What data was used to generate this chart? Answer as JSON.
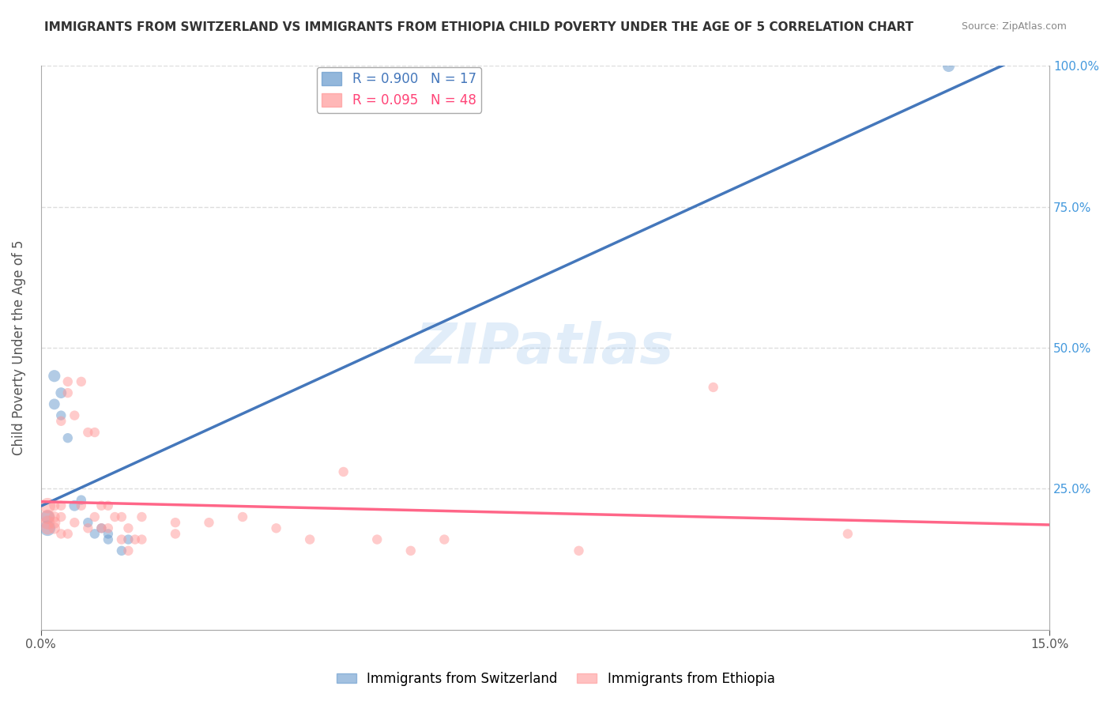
{
  "title": "IMMIGRANTS FROM SWITZERLAND VS IMMIGRANTS FROM ETHIOPIA CHILD POVERTY UNDER THE AGE OF 5 CORRELATION CHART",
  "source": "Source: ZipAtlas.com",
  "ylabel": "Child Poverty Under the Age of 5",
  "xlabel_switzerland": "Immigrants from Switzerland",
  "xlabel_ethiopia": "Immigrants from Ethiopia",
  "watermark": "ZIPatlas",
  "legend_switzerland": {
    "R": 0.9,
    "N": 17
  },
  "legend_ethiopia": {
    "R": 0.095,
    "N": 48
  },
  "xlim": [
    0,
    0.15
  ],
  "ylim": [
    0,
    1.0
  ],
  "color_switzerland": "#6699CC",
  "color_ethiopia": "#FF9999",
  "color_line_switzerland": "#4477BB",
  "color_line_ethiopia": "#FF6688",
  "switzerland_points": [
    [
      0.001,
      0.18
    ],
    [
      0.001,
      0.2
    ],
    [
      0.002,
      0.45
    ],
    [
      0.002,
      0.4
    ],
    [
      0.003,
      0.42
    ],
    [
      0.003,
      0.38
    ],
    [
      0.004,
      0.34
    ],
    [
      0.005,
      0.22
    ],
    [
      0.006,
      0.23
    ],
    [
      0.007,
      0.19
    ],
    [
      0.008,
      0.17
    ],
    [
      0.009,
      0.18
    ],
    [
      0.01,
      0.17
    ],
    [
      0.01,
      0.16
    ],
    [
      0.012,
      0.14
    ],
    [
      0.013,
      0.16
    ],
    [
      0.135,
      1.0
    ]
  ],
  "switzerland_sizes": [
    200,
    150,
    120,
    100,
    100,
    80,
    80,
    100,
    80,
    80,
    80,
    80,
    80,
    80,
    80,
    80,
    120
  ],
  "ethiopia_points": [
    [
      0.001,
      0.22
    ],
    [
      0.001,
      0.2
    ],
    [
      0.001,
      0.19
    ],
    [
      0.001,
      0.18
    ],
    [
      0.002,
      0.19
    ],
    [
      0.002,
      0.18
    ],
    [
      0.002,
      0.2
    ],
    [
      0.002,
      0.22
    ],
    [
      0.003,
      0.37
    ],
    [
      0.003,
      0.22
    ],
    [
      0.003,
      0.2
    ],
    [
      0.003,
      0.17
    ],
    [
      0.004,
      0.44
    ],
    [
      0.004,
      0.42
    ],
    [
      0.004,
      0.17
    ],
    [
      0.005,
      0.38
    ],
    [
      0.005,
      0.19
    ],
    [
      0.006,
      0.44
    ],
    [
      0.006,
      0.22
    ],
    [
      0.007,
      0.35
    ],
    [
      0.007,
      0.18
    ],
    [
      0.008,
      0.35
    ],
    [
      0.008,
      0.2
    ],
    [
      0.009,
      0.22
    ],
    [
      0.009,
      0.18
    ],
    [
      0.01,
      0.22
    ],
    [
      0.01,
      0.18
    ],
    [
      0.011,
      0.2
    ],
    [
      0.012,
      0.2
    ],
    [
      0.012,
      0.16
    ],
    [
      0.013,
      0.14
    ],
    [
      0.013,
      0.18
    ],
    [
      0.014,
      0.16
    ],
    [
      0.015,
      0.2
    ],
    [
      0.015,
      0.16
    ],
    [
      0.02,
      0.19
    ],
    [
      0.02,
      0.17
    ],
    [
      0.025,
      0.19
    ],
    [
      0.03,
      0.2
    ],
    [
      0.035,
      0.18
    ],
    [
      0.04,
      0.16
    ],
    [
      0.045,
      0.28
    ],
    [
      0.05,
      0.16
    ],
    [
      0.055,
      0.14
    ],
    [
      0.06,
      0.16
    ],
    [
      0.08,
      0.14
    ],
    [
      0.1,
      0.43
    ],
    [
      0.12,
      0.17
    ]
  ],
  "ethiopia_sizes": [
    200,
    180,
    160,
    140,
    120,
    110,
    100,
    90,
    80,
    80,
    80,
    80,
    80,
    80,
    80,
    80,
    80,
    80,
    80,
    80,
    80,
    80,
    80,
    80,
    80,
    80,
    80,
    80,
    80,
    80,
    80,
    80,
    80,
    80,
    80,
    80,
    80,
    80,
    80,
    80,
    80,
    80,
    80,
    80,
    80,
    80,
    80,
    80
  ],
  "yticks": [
    0.0,
    0.25,
    0.5,
    0.75,
    1.0
  ],
  "ytick_labels": [
    "",
    "25.0%",
    "50.0%",
    "75.0%",
    "100.0%"
  ],
  "xticks": [
    0.0,
    0.15
  ],
  "xtick_labels": [
    "0.0%",
    "15.0%"
  ],
  "background_color": "#FFFFFF",
  "grid_color": "#DDDDDD"
}
